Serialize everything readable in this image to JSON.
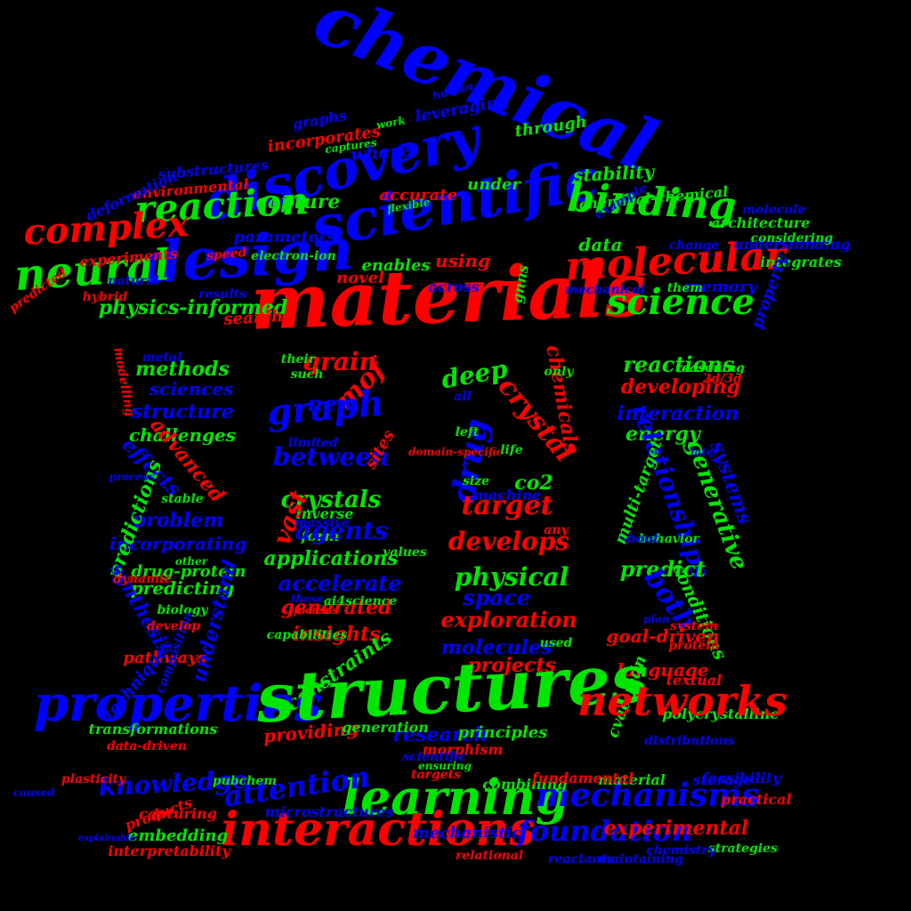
{
  "palette": {
    "red": "#ff0000",
    "green": "#00e600",
    "blue": "#0000ff"
  },
  "words": [
    {
      "t": "chemical",
      "c": "blue"
    },
    {
      "t": "discovery",
      "c": "blue"
    },
    {
      "t": "scientific",
      "c": "blue"
    },
    {
      "t": "materials",
      "c": "red"
    },
    {
      "t": "design",
      "c": "blue"
    },
    {
      "t": "reaction",
      "c": "green"
    },
    {
      "t": "binding",
      "c": "green"
    },
    {
      "t": "molecular",
      "c": "red"
    },
    {
      "t": "neural",
      "c": "green"
    },
    {
      "t": "complex",
      "c": "red"
    },
    {
      "t": "science",
      "c": "green"
    },
    {
      "t": "physics-informed",
      "c": "green"
    },
    {
      "t": "capture",
      "c": "green"
    },
    {
      "t": "under",
      "c": "green"
    },
    {
      "t": "accurate",
      "c": "red"
    },
    {
      "t": "where",
      "c": "blue"
    },
    {
      "t": "incorporates",
      "c": "red"
    },
    {
      "t": "leveraging",
      "c": "blue"
    },
    {
      "t": "through",
      "c": "green"
    },
    {
      "t": "graphs",
      "c": "blue"
    },
    {
      "t": "stability",
      "c": "green"
    },
    {
      "t": "parameters",
      "c": "blue"
    },
    {
      "t": "enables",
      "c": "green"
    },
    {
      "t": "using",
      "c": "red"
    },
    {
      "t": "novel",
      "c": "red"
    },
    {
      "t": "across",
      "c": "blue"
    },
    {
      "t": "data",
      "c": "green"
    },
    {
      "t": "gnns",
      "c": "green"
    },
    {
      "t": "chemical-chemical",
      "c": "green"
    },
    {
      "t": "memory",
      "c": "blue"
    },
    {
      "t": "integrates",
      "c": "green"
    },
    {
      "t": "understanding",
      "c": "blue"
    },
    {
      "t": "architecture",
      "c": "green"
    },
    {
      "t": "property",
      "c": "blue"
    },
    {
      "t": "considering",
      "c": "green"
    },
    {
      "t": "search",
      "c": "red"
    },
    {
      "t": "results",
      "c": "blue"
    },
    {
      "t": "experiments",
      "c": "red"
    },
    {
      "t": "natural",
      "c": "blue"
    },
    {
      "t": "environmental",
      "c": "red"
    },
    {
      "t": "substructures",
      "c": "blue"
    },
    {
      "t": "hybrid",
      "c": "red"
    },
    {
      "t": "predicted",
      "c": "red"
    },
    {
      "t": "speed",
      "c": "red"
    },
    {
      "t": "them",
      "c": "green"
    },
    {
      "t": "change",
      "c": "blue"
    },
    {
      "t": "example",
      "c": "blue"
    },
    {
      "t": "human",
      "c": "blue"
    },
    {
      "t": "work",
      "c": "green"
    },
    {
      "t": "captures",
      "c": "green"
    },
    {
      "t": "deformation",
      "c": "blue"
    },
    {
      "t": "mechanical",
      "c": "blue"
    },
    {
      "t": "electron-ion",
      "c": "green"
    },
    {
      "t": "flexible",
      "c": "green"
    },
    {
      "t": "molecule",
      "c": "blue"
    },
    {
      "t": "methods",
      "c": "green"
    },
    {
      "t": "sciences",
      "c": "blue"
    },
    {
      "t": "structure",
      "c": "blue"
    },
    {
      "t": "challenges",
      "c": "green"
    },
    {
      "t": "advanced",
      "c": "red"
    },
    {
      "t": "effects",
      "c": "blue"
    },
    {
      "t": "problem",
      "c": "blue"
    },
    {
      "t": "incorporating",
      "c": "blue"
    },
    {
      "t": "predictions",
      "c": "green"
    },
    {
      "t": "drug-protein",
      "c": "green"
    },
    {
      "t": "predicting",
      "c": "green"
    },
    {
      "t": "synthesis",
      "c": "blue"
    },
    {
      "t": "pathways",
      "c": "red"
    },
    {
      "t": "modelling",
      "c": "red"
    },
    {
      "t": "metal",
      "c": "blue"
    },
    {
      "t": "understand",
      "c": "blue"
    },
    {
      "t": "biology",
      "c": "green"
    },
    {
      "t": "composition",
      "c": "blue"
    },
    {
      "t": "stable",
      "c": "green"
    },
    {
      "t": "process",
      "c": "blue"
    },
    {
      "t": "dynamic",
      "c": "red"
    },
    {
      "t": "develop",
      "c": "red"
    },
    {
      "t": "other",
      "c": "green"
    },
    {
      "t": "grain",
      "c": "red"
    },
    {
      "t": "mof",
      "c": "red"
    },
    {
      "t": "graph",
      "c": "blue"
    },
    {
      "t": "new",
      "c": "blue"
    },
    {
      "t": "between",
      "c": "blue"
    },
    {
      "t": "crystals",
      "c": "green"
    },
    {
      "t": "inverse",
      "c": "green"
    },
    {
      "t": "form",
      "c": "green"
    },
    {
      "t": "agents",
      "c": "blue"
    },
    {
      "t": "applications",
      "c": "green"
    },
    {
      "t": "accelerate",
      "c": "blue"
    },
    {
      "t": "generated",
      "c": "red"
    },
    {
      "t": "insights",
      "c": "red"
    },
    {
      "t": "constraints",
      "c": "green"
    },
    {
      "t": "vast",
      "c": "red"
    },
    {
      "t": "sites",
      "c": "red"
    },
    {
      "t": "such",
      "c": "green"
    },
    {
      "t": "their",
      "c": "green"
    },
    {
      "t": "limited",
      "c": "blue"
    },
    {
      "t": "massive",
      "c": "blue"
    },
    {
      "t": "values",
      "c": "green"
    },
    {
      "t": "these",
      "c": "blue"
    },
    {
      "t": "ai4science",
      "c": "green"
    },
    {
      "t": "capabilities",
      "c": "green"
    },
    {
      "t": "focuses",
      "c": "red"
    },
    {
      "t": "crystal",
      "c": "red"
    },
    {
      "t": "drug",
      "c": "blue"
    },
    {
      "t": "deep",
      "c": "green"
    },
    {
      "t": "target",
      "c": "red"
    },
    {
      "t": "co2",
      "c": "green"
    },
    {
      "t": "develops",
      "c": "red"
    },
    {
      "t": "physical",
      "c": "green"
    },
    {
      "t": "space",
      "c": "blue"
    },
    {
      "t": "exploration",
      "c": "red"
    },
    {
      "t": "molecules",
      "c": "blue"
    },
    {
      "t": "projects",
      "c": "red"
    },
    {
      "t": "chemicals",
      "c": "red"
    },
    {
      "t": "machine",
      "c": "blue"
    },
    {
      "t": "size",
      "c": "green"
    },
    {
      "t": "any",
      "c": "red"
    },
    {
      "t": "life",
      "c": "green"
    },
    {
      "t": "left",
      "c": "green"
    },
    {
      "t": "all",
      "c": "blue"
    },
    {
      "t": "used",
      "c": "green"
    },
    {
      "t": "only",
      "c": "green"
    },
    {
      "t": "reactions",
      "c": "green"
    },
    {
      "t": "developing",
      "c": "red"
    },
    {
      "t": "interaction",
      "c": "blue"
    },
    {
      "t": "energy",
      "c": "green"
    },
    {
      "t": "relationships",
      "c": "blue"
    },
    {
      "t": "generative",
      "c": "green"
    },
    {
      "t": "systems",
      "c": "blue"
    },
    {
      "t": "predict",
      "c": "green"
    },
    {
      "t": "both",
      "c": "blue"
    },
    {
      "t": "conditions",
      "c": "green"
    },
    {
      "t": "goal-driven",
      "c": "red"
    },
    {
      "t": "language",
      "c": "red"
    },
    {
      "t": "cvae-mdn",
      "c": "green"
    },
    {
      "t": "polycrystalline",
      "c": "green"
    },
    {
      "t": "textual",
      "c": "red"
    },
    {
      "t": "behavior",
      "c": "green"
    },
    {
      "t": "about",
      "c": "blue"
    },
    {
      "t": "protein",
      "c": "red"
    },
    {
      "t": "system",
      "c": "red"
    },
    {
      "t": "plan",
      "c": "blue"
    },
    {
      "t": "reasoning",
      "c": "green"
    },
    {
      "t": "2d/3d",
      "c": "red"
    },
    {
      "t": "later",
      "c": "blue"
    },
    {
      "t": "multi-target",
      "c": "green"
    },
    {
      "t": "properties",
      "c": "blue"
    },
    {
      "t": "structures",
      "c": "green"
    },
    {
      "t": "networks",
      "c": "red"
    },
    {
      "t": "learning",
      "c": "green"
    },
    {
      "t": "interactions",
      "c": "red"
    },
    {
      "t": "mechanisms",
      "c": "blue"
    },
    {
      "t": "attention",
      "c": "blue"
    },
    {
      "t": "knowledge",
      "c": "blue"
    },
    {
      "t": "foundation",
      "c": "blue"
    },
    {
      "t": "experimental",
      "c": "red"
    },
    {
      "t": "research",
      "c": "blue"
    },
    {
      "t": "providing",
      "c": "red"
    },
    {
      "t": "generation",
      "c": "green"
    },
    {
      "t": "transformations",
      "c": "green"
    },
    {
      "t": "principles",
      "c": "green"
    },
    {
      "t": "techniques",
      "c": "blue"
    },
    {
      "t": "data-driven",
      "c": "red"
    },
    {
      "t": "morphism",
      "c": "red"
    },
    {
      "t": "distributions",
      "c": "blue"
    },
    {
      "t": "mechanistic",
      "c": "blue"
    },
    {
      "t": "combining",
      "c": "green"
    },
    {
      "t": "material",
      "c": "green"
    },
    {
      "t": "storage",
      "c": "blue"
    },
    {
      "t": "feasibility",
      "c": "blue"
    },
    {
      "t": "fundamental",
      "c": "red"
    },
    {
      "t": "practical",
      "c": "red"
    },
    {
      "t": "strategies",
      "c": "green"
    },
    {
      "t": "chemistry",
      "c": "blue"
    },
    {
      "t": "maintaining",
      "c": "blue"
    },
    {
      "t": "reactants",
      "c": "blue"
    },
    {
      "t": "relational",
      "c": "red"
    },
    {
      "t": "microstructures",
      "c": "blue"
    },
    {
      "t": "interpretability",
      "c": "red"
    },
    {
      "t": "embedding",
      "c": "green"
    },
    {
      "t": "capturing",
      "c": "red"
    },
    {
      "t": "products",
      "c": "red"
    },
    {
      "t": "plasticity",
      "c": "red"
    },
    {
      "t": "pubchem",
      "c": "green"
    },
    {
      "t": "targets",
      "c": "red"
    },
    {
      "t": "ensuring",
      "c": "green"
    },
    {
      "t": "scientific",
      "c": "blue"
    },
    {
      "t": "caused",
      "c": "blue"
    },
    {
      "t": "explainable",
      "c": "blue"
    },
    {
      "t": "domain-specific",
      "c": "red"
    }
  ]
}
